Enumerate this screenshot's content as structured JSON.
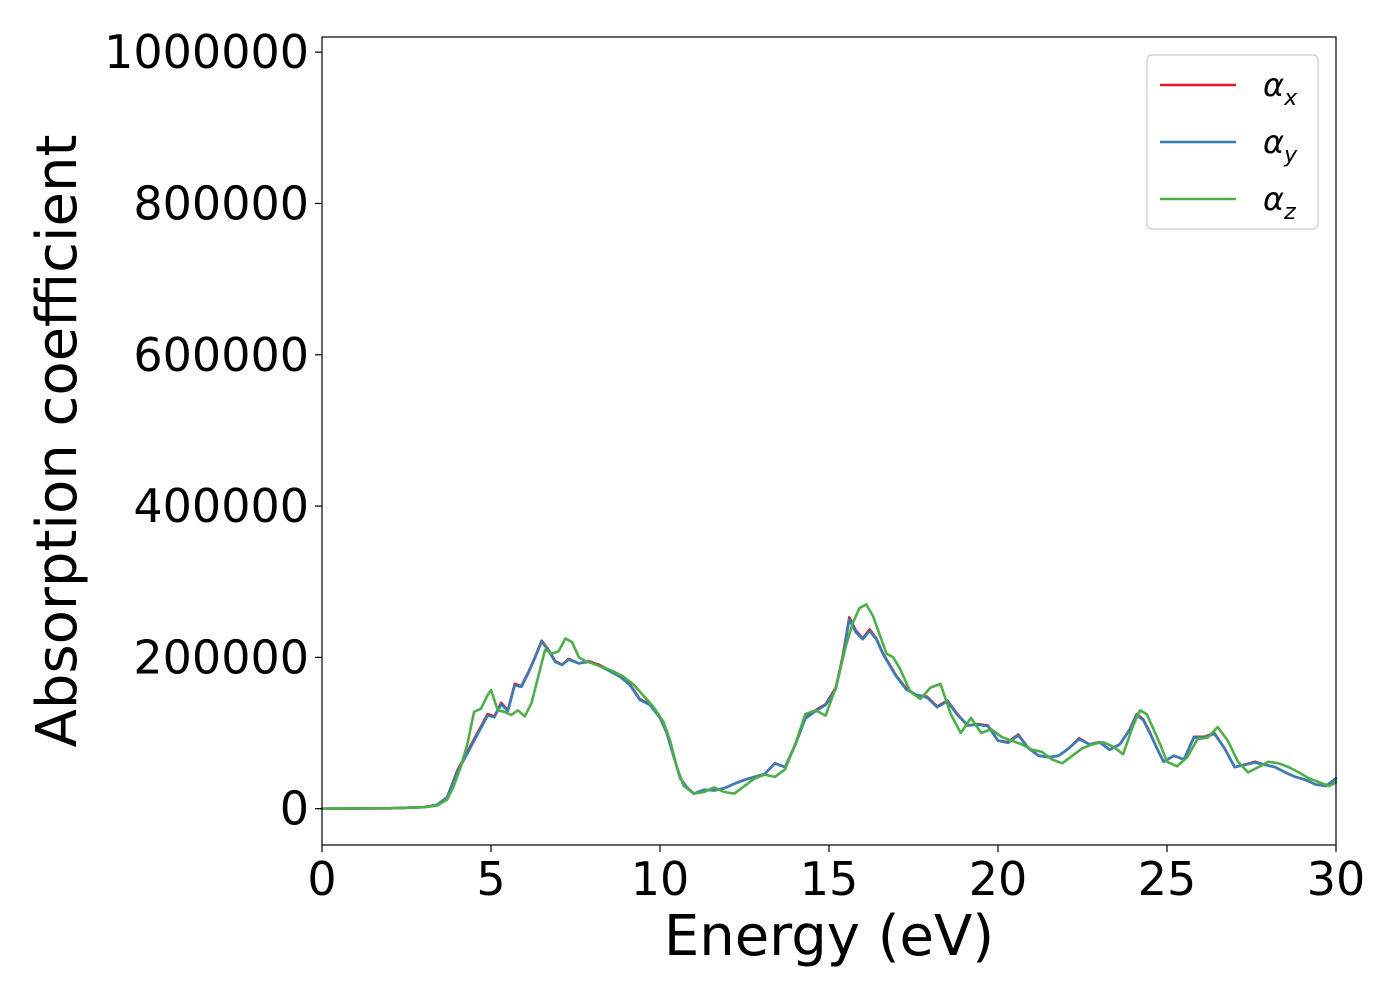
{
  "chart_data": {
    "type": "line",
    "xlabel": "Energy (eV)",
    "ylabel": "Absorption coefficient",
    "xlim": [
      0,
      30
    ],
    "ylim": [
      -48000,
      1020000
    ],
    "xticks": [
      0,
      5,
      10,
      15,
      20,
      25,
      30
    ],
    "yticks": [
      0,
      200000,
      400000,
      600000,
      800000,
      1000000
    ],
    "xtick_labels": [
      "0",
      "5",
      "10",
      "15",
      "20",
      "25",
      "30"
    ],
    "ytick_labels": [
      "0",
      "200000",
      "400000",
      "600000",
      "800000",
      "1000000"
    ],
    "grid": false,
    "legend_position": "top-right",
    "series": [
      {
        "name": "α",
        "subscript": "x",
        "color": "#e41a1c",
        "x": [
          0,
          2,
          3,
          3.4,
          3.7,
          4.0,
          4.3,
          4.6,
          4.9,
          5.1,
          5.3,
          5.5,
          5.7,
          5.9,
          6.1,
          6.3,
          6.5,
          6.7,
          6.9,
          7.1,
          7.3,
          7.6,
          7.9,
          8.2,
          8.5,
          8.8,
          9.1,
          9.4,
          9.7,
          10.0,
          10.2,
          10.4,
          10.6,
          10.8,
          11.0,
          11.3,
          11.6,
          11.9,
          12.2,
          12.5,
          12.8,
          13.1,
          13.4,
          13.7,
          14.0,
          14.3,
          14.6,
          14.9,
          15.2,
          15.4,
          15.6,
          15.8,
          16.0,
          16.2,
          16.4,
          16.6,
          16.8,
          17.0,
          17.3,
          17.6,
          17.9,
          18.2,
          18.5,
          18.8,
          19.1,
          19.4,
          19.7,
          20.0,
          20.3,
          20.6,
          20.9,
          21.2,
          21.5,
          21.8,
          22.1,
          22.4,
          22.7,
          23.0,
          23.3,
          23.6,
          23.9,
          24.1,
          24.3,
          24.5,
          24.7,
          24.9,
          25.2,
          25.5,
          25.8,
          26.1,
          26.4,
          26.7,
          27.0,
          27.3,
          27.6,
          27.9,
          28.2,
          28.5,
          28.8,
          29.1,
          29.4,
          29.7,
          30.0
        ],
        "y": [
          0,
          500,
          2000,
          5000,
          15000,
          50000,
          75000,
          100000,
          125000,
          122000,
          140000,
          130000,
          165000,
          162000,
          180000,
          200000,
          222000,
          210000,
          195000,
          190000,
          198000,
          192000,
          195000,
          190000,
          183000,
          175000,
          165000,
          145000,
          138000,
          120000,
          100000,
          70000,
          40000,
          28000,
          20000,
          25000,
          24000,
          27000,
          33000,
          38000,
          42000,
          46000,
          60000,
          55000,
          85000,
          120000,
          130000,
          138000,
          160000,
          200000,
          253000,
          235000,
          225000,
          237000,
          225000,
          205000,
          190000,
          175000,
          158000,
          150000,
          148000,
          135000,
          143000,
          125000,
          110000,
          112000,
          110000,
          90000,
          88000,
          98000,
          80000,
          70000,
          68000,
          70000,
          80000,
          93000,
          85000,
          88000,
          78000,
          85000,
          105000,
          125000,
          118000,
          100000,
          80000,
          62000,
          70000,
          65000,
          95000,
          95000,
          100000,
          80000,
          55000,
          58000,
          62000,
          58000,
          55000,
          48000,
          42000,
          38000,
          32000,
          30000,
          40000
        ]
      },
      {
        "name": "α",
        "subscript": "y",
        "color": "#377eb8",
        "x": [
          0,
          2,
          3,
          3.4,
          3.7,
          4.0,
          4.3,
          4.6,
          4.9,
          5.1,
          5.3,
          5.5,
          5.7,
          5.9,
          6.1,
          6.3,
          6.5,
          6.7,
          6.9,
          7.1,
          7.3,
          7.6,
          7.9,
          8.2,
          8.5,
          8.8,
          9.1,
          9.4,
          9.7,
          10.0,
          10.2,
          10.4,
          10.6,
          10.8,
          11.0,
          11.3,
          11.6,
          11.9,
          12.2,
          12.5,
          12.8,
          13.1,
          13.4,
          13.7,
          14.0,
          14.3,
          14.6,
          14.9,
          15.2,
          15.4,
          15.6,
          15.8,
          16.0,
          16.2,
          16.4,
          16.6,
          16.8,
          17.0,
          17.3,
          17.6,
          17.9,
          18.2,
          18.5,
          18.8,
          19.1,
          19.4,
          19.7,
          20.0,
          20.3,
          20.6,
          20.9,
          21.2,
          21.5,
          21.8,
          22.1,
          22.4,
          22.7,
          23.0,
          23.3,
          23.6,
          23.9,
          24.1,
          24.3,
          24.5,
          24.7,
          24.9,
          25.2,
          25.5,
          25.8,
          26.1,
          26.4,
          26.7,
          27.0,
          27.3,
          27.6,
          27.9,
          28.2,
          28.5,
          28.8,
          29.1,
          29.4,
          29.7,
          30.0
        ],
        "y": [
          0,
          500,
          2000,
          5000,
          15000,
          48000,
          73000,
          98000,
          123000,
          121000,
          138000,
          129000,
          163000,
          161000,
          179000,
          199000,
          221000,
          209000,
          194000,
          190000,
          197000,
          192000,
          194000,
          189000,
          182000,
          175000,
          164000,
          144000,
          137000,
          120000,
          100000,
          70000,
          40000,
          28000,
          20000,
          25000,
          24000,
          27000,
          33000,
          38000,
          42000,
          46000,
          60000,
          55000,
          84000,
          119000,
          129000,
          137000,
          158000,
          198000,
          250000,
          233000,
          224000,
          235000,
          224000,
          204000,
          189000,
          174000,
          157000,
          150000,
          147000,
          134000,
          142000,
          124000,
          110000,
          111000,
          109000,
          90000,
          87000,
          97000,
          80000,
          70000,
          68000,
          70000,
          80000,
          92000,
          85000,
          88000,
          78000,
          85000,
          104000,
          124000,
          117000,
          99000,
          80000,
          62000,
          70000,
          65000,
          94000,
          94000,
          99000,
          80000,
          55000,
          58000,
          61000,
          58000,
          55000,
          48000,
          42000,
          38000,
          32000,
          30000,
          40000
        ]
      },
      {
        "name": "α",
        "subscript": "z",
        "color": "#4daf4a",
        "x": [
          0,
          2,
          3,
          3.4,
          3.7,
          3.9,
          4.1,
          4.3,
          4.5,
          4.7,
          4.9,
          5.0,
          5.2,
          5.4,
          5.6,
          5.8,
          6.0,
          6.2,
          6.4,
          6.6,
          6.8,
          7.0,
          7.2,
          7.4,
          7.6,
          7.8,
          8.0,
          8.3,
          8.6,
          8.9,
          9.2,
          9.5,
          9.8,
          10.1,
          10.3,
          10.5,
          10.7,
          11.0,
          11.3,
          11.6,
          11.9,
          12.2,
          12.5,
          12.8,
          13.1,
          13.4,
          13.7,
          14.0,
          14.3,
          14.6,
          14.9,
          15.2,
          15.5,
          15.7,
          15.9,
          16.1,
          16.3,
          16.5,
          16.7,
          16.9,
          17.1,
          17.4,
          17.7,
          18.0,
          18.3,
          18.6,
          18.9,
          19.2,
          19.5,
          19.8,
          20.1,
          20.4,
          20.7,
          21.0,
          21.3,
          21.6,
          21.9,
          22.2,
          22.5,
          22.8,
          23.1,
          23.4,
          23.7,
          24.0,
          24.2,
          24.4,
          24.6,
          24.8,
          25.0,
          25.3,
          25.6,
          25.9,
          26.2,
          26.5,
          26.8,
          27.1,
          27.4,
          27.7,
          28.0,
          28.3,
          28.6,
          28.9,
          29.2,
          29.5,
          29.8,
          30.0
        ],
        "y": [
          0,
          500,
          2000,
          4000,
          12000,
          30000,
          55000,
          85000,
          128000,
          132000,
          150000,
          157000,
          130000,
          128000,
          124000,
          130000,
          122000,
          140000,
          175000,
          210000,
          205000,
          208000,
          225000,
          220000,
          200000,
          195000,
          192000,
          187000,
          182000,
          175000,
          165000,
          150000,
          135000,
          115000,
          90000,
          55000,
          30000,
          20000,
          22000,
          28000,
          22000,
          20000,
          30000,
          40000,
          45000,
          42000,
          52000,
          85000,
          125000,
          130000,
          123000,
          160000,
          215000,
          245000,
          265000,
          270000,
          255000,
          230000,
          205000,
          200000,
          185000,
          155000,
          145000,
          160000,
          165000,
          125000,
          100000,
          120000,
          100000,
          105000,
          95000,
          90000,
          85000,
          78000,
          75000,
          65000,
          60000,
          70000,
          80000,
          85000,
          88000,
          82000,
          72000,
          110000,
          130000,
          125000,
          105000,
          85000,
          62000,
          56000,
          68000,
          92000,
          94000,
          108000,
          90000,
          62000,
          48000,
          55000,
          62000,
          60000,
          55000,
          48000,
          40000,
          35000,
          30000,
          35000
        ]
      }
    ]
  }
}
